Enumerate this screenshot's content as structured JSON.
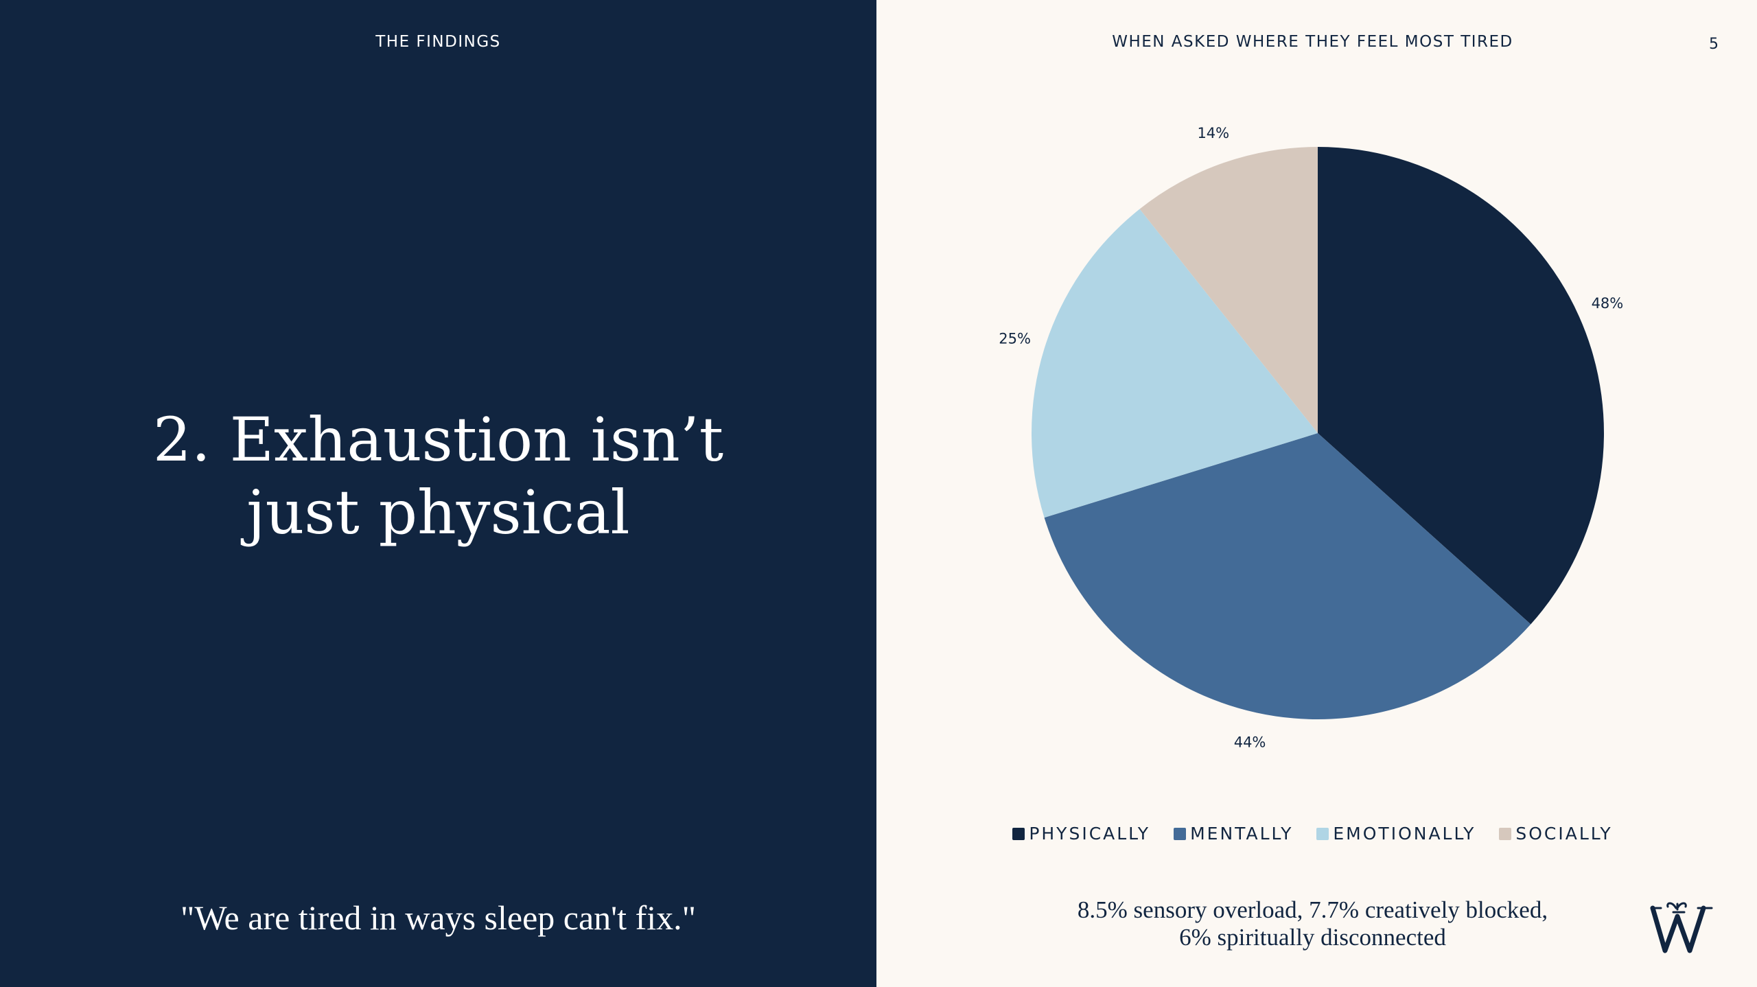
{
  "left": {
    "eyebrow": "THE FINDINGS",
    "headline_lines": [
      "2. Exhaustion isn’t",
      "just physical"
    ],
    "quote": "\"We are tired in ways sleep can't fix.\""
  },
  "right": {
    "eyebrow": "WHEN ASKED WHERE THEY FEEL MOST TIRED",
    "page_number": "5",
    "footnote_lines": [
      "8.5% sensory overload, 7.7% creatively blocked,",
      "6% spiritually disconnected"
    ]
  },
  "chart_data": {
    "type": "pie",
    "title": "WHEN ASKED WHERE THEY FEEL MOST TIRED",
    "categories": [
      "PHYSICALLY",
      "MENTALLY",
      "EMOTIONALLY",
      "SOCIALLY"
    ],
    "values": [
      48,
      44,
      25,
      14
    ],
    "value_labels": [
      "48%",
      "44%",
      "25%",
      "14%"
    ],
    "colors": [
      "#112540",
      "#436b97",
      "#b0d5e5",
      "#d6c8bd"
    ],
    "start_angle": "12 o'clock",
    "direction": "clockwise",
    "legend": "bottom"
  },
  "colors": {
    "left_background": "#112540",
    "right_background": "#fcf8f3",
    "text_dark": "#112540"
  },
  "brand": {
    "icon": "w-monogram-logo-icon"
  }
}
